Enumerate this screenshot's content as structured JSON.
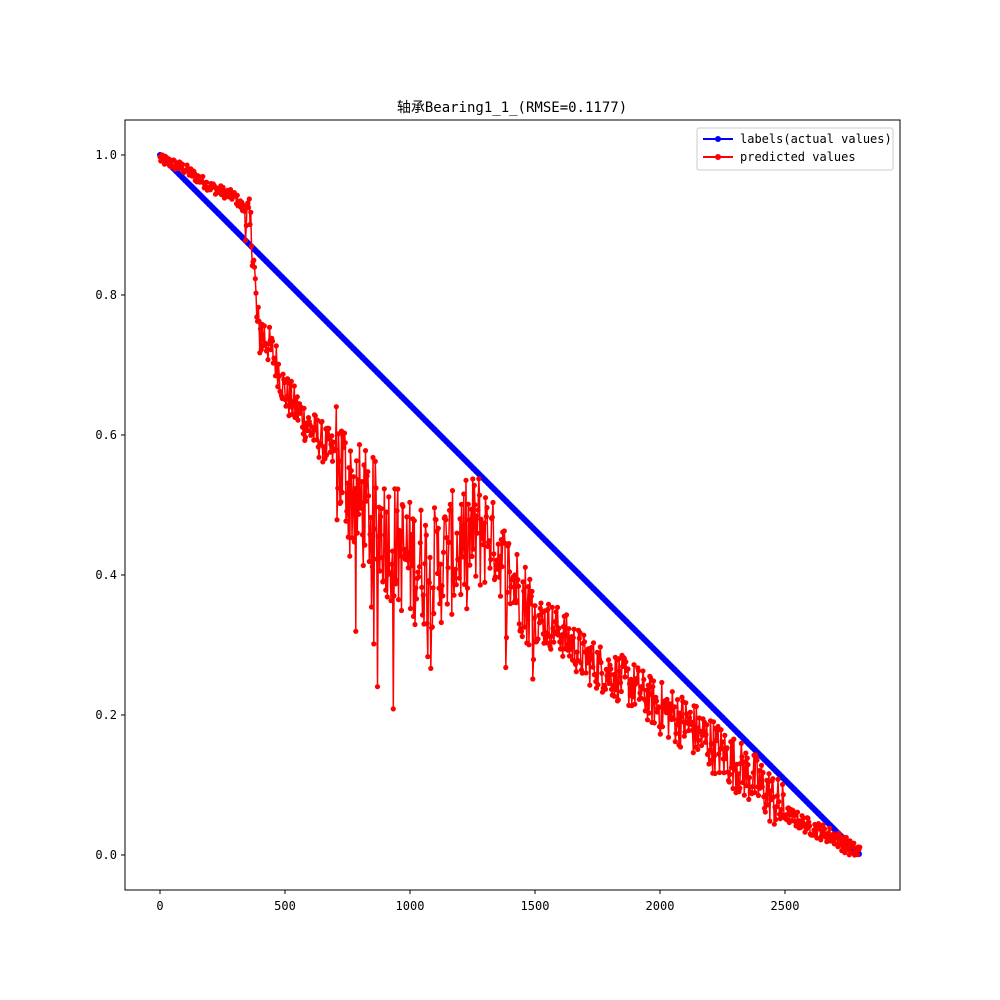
{
  "chart_data": {
    "type": "line",
    "title": "轴承Bearing1_1_(RMSE=0.1177)",
    "xlabel": "",
    "ylabel": "",
    "xlim": [
      -140,
      2960
    ],
    "ylim": [
      -0.05,
      1.05
    ],
    "xticks": [
      0,
      500,
      1000,
      1500,
      2000,
      2500
    ],
    "yticks": [
      0.0,
      0.2,
      0.4,
      0.6,
      0.8,
      1.0
    ],
    "xtick_labels": [
      "0",
      "500",
      "1000",
      "1500",
      "2000",
      "2500"
    ],
    "ytick_labels": [
      "0.0",
      "0.2",
      "0.4",
      "0.6",
      "0.8",
      "1.0"
    ],
    "grid": false,
    "legend_position": "top-right",
    "num_points": 2800,
    "series": [
      {
        "name": "labels(actual values)",
        "color": "#0000ff",
        "marker": "circle",
        "x": [
          0,
          2800
        ],
        "y": [
          1.0,
          0.0
        ]
      },
      {
        "name": "predicted values",
        "color": "#ff0000",
        "marker": "circle",
        "x": [
          0,
          100,
          200,
          300,
          340,
          370,
          390,
          420,
          470,
          500,
          600,
          700,
          800,
          900,
          1000,
          1100,
          1200,
          1300,
          1400,
          1500,
          1600,
          1700,
          1800,
          1900,
          2000,
          2100,
          2200,
          2300,
          2400,
          2500,
          2600,
          2700,
          2780
        ],
        "y": [
          0.995,
          0.98,
          0.955,
          0.94,
          0.92,
          0.88,
          0.75,
          0.74,
          0.7,
          0.66,
          0.61,
          0.57,
          0.5,
          0.46,
          0.42,
          0.41,
          0.44,
          0.47,
          0.4,
          0.34,
          0.32,
          0.28,
          0.26,
          0.24,
          0.21,
          0.19,
          0.16,
          0.13,
          0.1,
          0.06,
          0.04,
          0.025,
          0.005
        ]
      }
    ]
  }
}
